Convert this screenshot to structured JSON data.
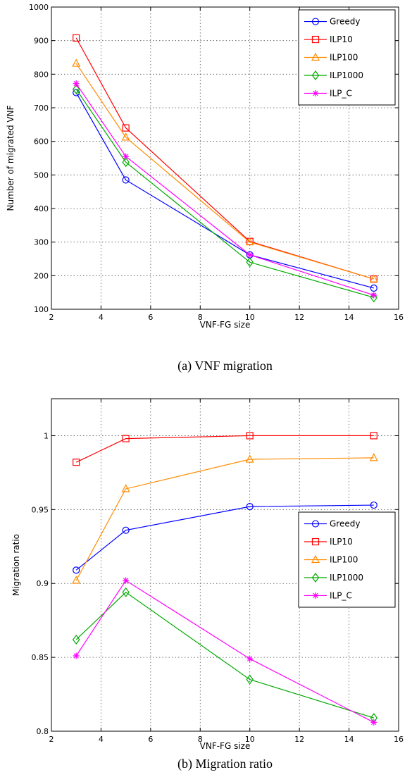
{
  "chart_data": [
    {
      "type": "line",
      "caption": "(a) VNF migration",
      "xlabel": "VNF-FG size",
      "ylabel": "Number of migrated VNF",
      "xlim": [
        2,
        16
      ],
      "ylim": [
        100,
        1000
      ],
      "xticks": [
        2,
        4,
        6,
        8,
        10,
        12,
        14,
        16
      ],
      "yticks": [
        100,
        200,
        300,
        400,
        500,
        600,
        700,
        800,
        900,
        1000
      ],
      "grid": true,
      "legend_position": "top-right",
      "x": [
        3,
        5,
        10,
        15
      ],
      "series": [
        {
          "name": "Greedy",
          "color": "#0000ff",
          "marker": "circle",
          "values": [
            745,
            485,
            262,
            163
          ]
        },
        {
          "name": "ILP10",
          "color": "#ff0000",
          "marker": "square",
          "values": [
            908,
            640,
            302,
            190
          ]
        },
        {
          "name": "ILP100",
          "color": "#ff8c00",
          "marker": "triangle",
          "values": [
            832,
            612,
            300,
            190
          ]
        },
        {
          "name": "ILP1000",
          "color": "#00aa00",
          "marker": "diamond",
          "values": [
            755,
            538,
            240,
            135
          ]
        },
        {
          "name": "ILP_C",
          "color": "#ff00ff",
          "marker": "star",
          "values": [
            772,
            555,
            262,
            142
          ]
        }
      ]
    },
    {
      "type": "line",
      "caption": "(b) Migration ratio",
      "xlabel": "VNF-FG size",
      "ylabel": "Migration ratio",
      "xlim": [
        2,
        16
      ],
      "ylim": [
        0.8,
        1.025
      ],
      "xticks": [
        2,
        4,
        6,
        8,
        10,
        12,
        14,
        16
      ],
      "yticks": [
        0.8,
        0.85,
        0.9,
        0.95,
        1
      ],
      "ytick_labels": [
        "0.8",
        "0.85",
        "0.9",
        "0.95",
        "1"
      ],
      "grid": true,
      "legend_position": "right",
      "x": [
        3,
        5,
        10,
        15
      ],
      "series": [
        {
          "name": "Greedy",
          "color": "#0000ff",
          "marker": "circle",
          "values": [
            0.909,
            0.936,
            0.952,
            0.953
          ]
        },
        {
          "name": "ILP10",
          "color": "#ff0000",
          "marker": "square",
          "values": [
            0.982,
            0.998,
            1.0,
            1.0
          ]
        },
        {
          "name": "ILP100",
          "color": "#ff8c00",
          "marker": "triangle",
          "values": [
            0.902,
            0.964,
            0.984,
            0.985
          ]
        },
        {
          "name": "ILP1000",
          "color": "#00aa00",
          "marker": "diamond",
          "values": [
            0.862,
            0.894,
            0.835,
            0.809
          ]
        },
        {
          "name": "ILP_C",
          "color": "#ff00ff",
          "marker": "star",
          "values": [
            0.851,
            0.902,
            0.849,
            0.806
          ]
        }
      ]
    }
  ]
}
